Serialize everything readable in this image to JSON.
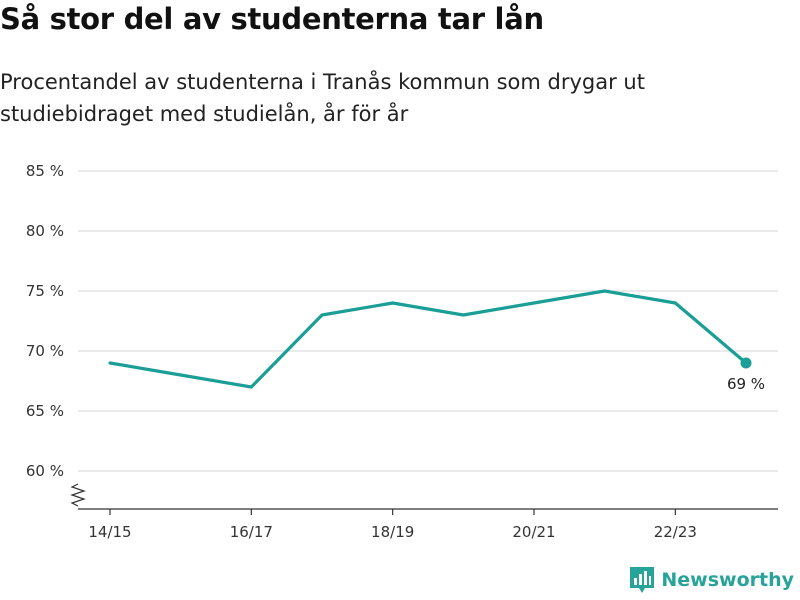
{
  "header": {
    "title": "Så stor del av studenterna tar lån",
    "subtitle": "Procentandel av studenterna i Tranås kommun som drygar ut studiebidraget med studielån, år för år"
  },
  "brand": {
    "name": "Newsworthy",
    "icon": "newsworthy-logo-icon"
  },
  "colors": {
    "line": "#1a9e96",
    "grid": "#dddddd",
    "axis": "#333333",
    "brand": "#27a39a"
  },
  "chart_data": {
    "type": "line",
    "title": "Så stor del av studenterna tar lån",
    "subtitle": "Procentandel av studenterna i Tranås kommun som drygar ut studiebidraget med studielån, år för år",
    "xlabel": "",
    "ylabel": "",
    "x": [
      "14/15",
      "15/16",
      "16/17",
      "17/18",
      "18/19",
      "19/20",
      "20/21",
      "21/22",
      "22/23",
      "23/24"
    ],
    "x_tick_labels": [
      "14/15",
      "16/17",
      "18/19",
      "20/21",
      "22/23"
    ],
    "series": [
      {
        "values": [
          69,
          68,
          67,
          73,
          74,
          73,
          74,
          75,
          74,
          69
        ]
      }
    ],
    "y_ticks": [
      60,
      65,
      70,
      75,
      80,
      85
    ],
    "y_tick_labels": [
      "60 %",
      "65 %",
      "70 %",
      "75 %",
      "80 %",
      "85 %"
    ],
    "ylim": [
      57,
      85
    ],
    "axis_break": true,
    "grid": true,
    "annotations": [
      {
        "x": "23/24",
        "value": 69,
        "text": "69 %"
      }
    ]
  }
}
